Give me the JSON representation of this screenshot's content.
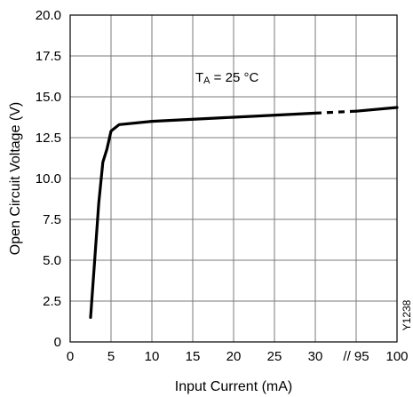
{
  "chart_data": {
    "type": "line",
    "xlabel": "Input Current (mA)",
    "ylabel": "Open Circuit Voltage (V)",
    "x_ticks": [
      "0",
      "5",
      "10",
      "15",
      "20",
      "25",
      "30",
      "// 95",
      "100"
    ],
    "y_ticks": [
      "0",
      "2.5",
      "5.0",
      "7.5",
      "10.0",
      "12.5",
      "15.0",
      "17.5",
      "20.0"
    ],
    "xlim": [
      0,
      100
    ],
    "ylim": [
      0,
      20
    ],
    "x_axis_break": {
      "from": 30,
      "to": 95
    },
    "grid": true,
    "annotation": {
      "main": "T",
      "sub": "A",
      "rest": " = 25 °C"
    },
    "figure_code": "Y1238",
    "series": [
      {
        "color": "#000000",
        "points": [
          {
            "x": 2.5,
            "y": 1.5
          },
          {
            "x": 3.0,
            "y": 5.0
          },
          {
            "x": 3.5,
            "y": 8.5
          },
          {
            "x": 4.0,
            "y": 11.0
          },
          {
            "x": 4.5,
            "y": 11.8
          },
          {
            "x": 5.0,
            "y": 12.9
          },
          {
            "x": 6.0,
            "y": 13.3
          },
          {
            "x": 10.0,
            "y": 13.5
          },
          {
            "x": 20.0,
            "y": 13.75
          },
          {
            "x": 30.0,
            "y": 14.0
          },
          {
            "x": 95.0,
            "y": 14.12
          },
          {
            "x": 100.0,
            "y": 14.35
          }
        ]
      }
    ]
  }
}
